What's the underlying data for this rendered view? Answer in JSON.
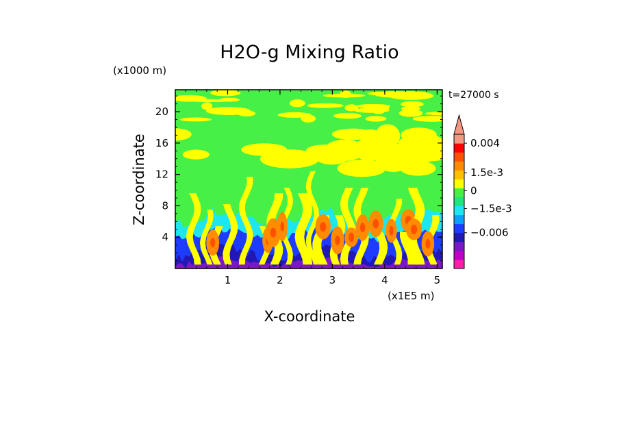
{
  "chart_data": {
    "type": "heatmap",
    "title": "H2O-g Mixing Ratio",
    "xlabel": "X-coordinate",
    "ylabel": "Z-coordinate",
    "x_unit": "(x1E5 m)",
    "y_unit": "(x1000 m)",
    "time_label": "t=27000 s",
    "xlim": [
      0,
      5.1
    ],
    "ylim": [
      0,
      22.8
    ],
    "x_ticks": [
      1,
      2,
      3,
      4,
      5
    ],
    "y_ticks": [
      4,
      8,
      12,
      16,
      20
    ],
    "x_tick_labels": [
      "1",
      "2",
      "3",
      "4",
      "5"
    ],
    "y_tick_labels": [
      "4",
      "8",
      "12",
      "16",
      "20"
    ],
    "colorbar": {
      "colors": [
        "#ff1ea8",
        "#c000c8",
        "#7a18c8",
        "#2218b4",
        "#1e3cff",
        "#0aa0ff",
        "#1ee6f0",
        "#1ee678",
        "#46f046",
        "#ffff00",
        "#ffc000",
        "#ff8c00",
        "#ff5000",
        "#ff0000",
        "#f49684"
      ],
      "labels": [
        "0.004",
        "1.5e-3",
        "0",
        "−1.5e-3",
        "−0.006"
      ],
      "label_values": [
        0.004,
        0.0015,
        0,
        -0.0015,
        -0.006
      ],
      "extend": "max"
    },
    "field_description_colors": {
      "background": "#46f046",
      "upper_moist": "#ffff00",
      "core": "#ff8c00",
      "core_inner": "#ff5000",
      "mid_band": "#1ee6f0",
      "lower_band": "#1e3cff",
      "lower_dark": "#2218b4",
      "surface": "#7a18c8"
    }
  }
}
